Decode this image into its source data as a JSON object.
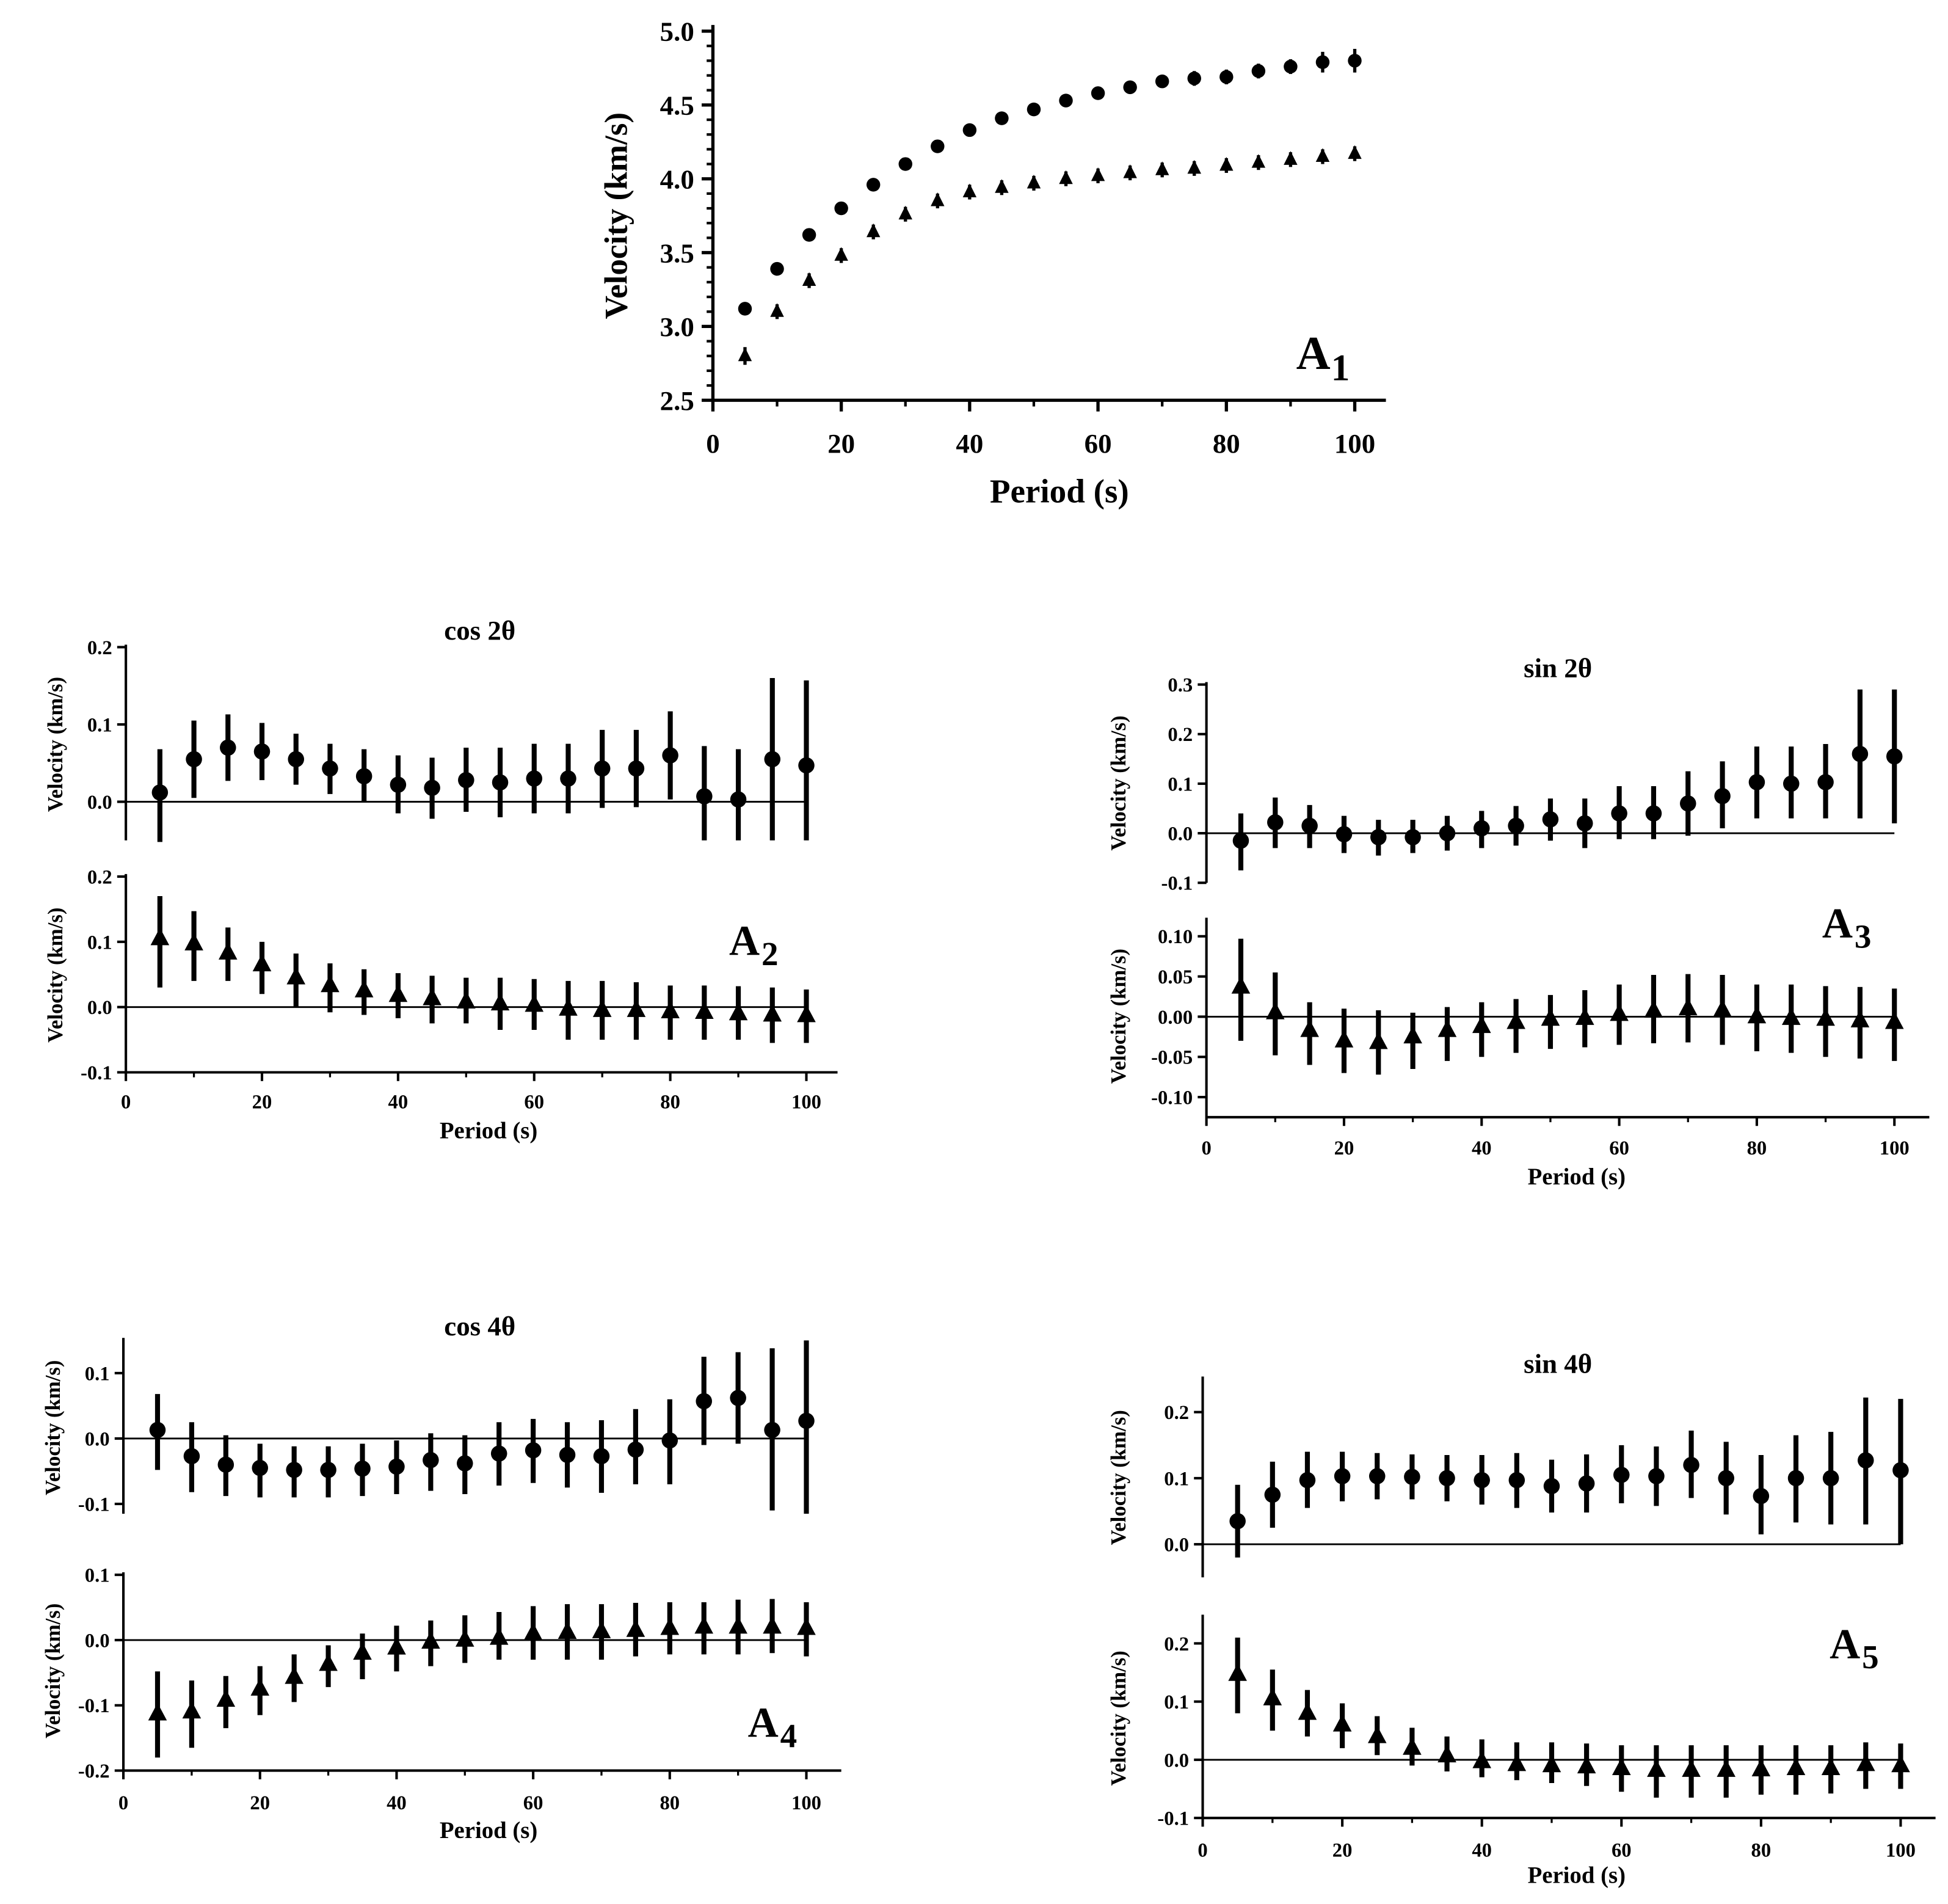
{
  "chart_data": [
    {
      "type": "scatter",
      "panel_label": {
        "letter": "A",
        "sub": "1"
      },
      "xlabel": "Period (s)",
      "ylabel": "Velocity (km/s)",
      "xlim": [
        0,
        100
      ],
      "ylim": [
        2.5,
        5.0
      ],
      "xticks": [
        "0",
        "20",
        "40",
        "60",
        "80",
        "100"
      ],
      "yticks": [
        "2.5",
        "3.0",
        "3.5",
        "4.0",
        "4.5",
        "5.0"
      ],
      "x_minor_step": 10,
      "y_minor_step": 0.1,
      "x": [
        5,
        10,
        15,
        20,
        25,
        30,
        35,
        40,
        45,
        50,
        55,
        60,
        65,
        70,
        75,
        80,
        85,
        90,
        95,
        100
      ],
      "series": [
        {
          "marker": "circle",
          "y": [
            3.12,
            3.39,
            3.62,
            3.8,
            3.96,
            4.1,
            4.22,
            4.33,
            4.41,
            4.47,
            4.53,
            4.58,
            4.62,
            4.66,
            4.68,
            4.69,
            4.73,
            4.76,
            4.79,
            4.8
          ],
          "y_low": [
            3.08,
            3.37,
            3.59,
            3.77,
            3.93,
            4.07,
            4.19,
            4.3,
            4.37,
            4.43,
            4.49,
            4.54,
            4.58,
            4.62,
            4.63,
            4.64,
            4.68,
            4.71,
            4.72,
            4.72
          ],
          "y_high": [
            3.16,
            3.41,
            3.65,
            3.83,
            3.99,
            4.13,
            4.25,
            4.36,
            4.45,
            4.51,
            4.57,
            4.62,
            4.66,
            4.7,
            4.73,
            4.74,
            4.78,
            4.81,
            4.86,
            4.88
          ]
        },
        {
          "marker": "triangle",
          "y": [
            2.8,
            3.1,
            3.31,
            3.48,
            3.64,
            3.76,
            3.85,
            3.91,
            3.94,
            3.97,
            4.0,
            4.02,
            4.04,
            4.06,
            4.07,
            4.09,
            4.11,
            4.13,
            4.15,
            4.17
          ],
          "y_low": [
            2.74,
            3.05,
            3.26,
            3.43,
            3.59,
            3.71,
            3.8,
            3.86,
            3.89,
            3.92,
            3.95,
            3.97,
            3.99,
            4.01,
            4.02,
            4.04,
            4.06,
            4.08,
            4.1,
            4.12
          ],
          "y_high": [
            2.86,
            3.15,
            3.36,
            3.53,
            3.69,
            3.81,
            3.9,
            3.96,
            3.99,
            4.02,
            4.05,
            4.07,
            4.09,
            4.11,
            4.12,
            4.14,
            4.16,
            4.18,
            4.2,
            4.22
          ]
        }
      ]
    },
    {
      "type": "scatter",
      "title": "cos 2θ",
      "ylabel": "Velocity (km/s)",
      "xlim": [
        0,
        100
      ],
      "ylim": [
        -0.05,
        0.2
      ],
      "yticks": [
        "0.2",
        "0.1",
        "0.0"
      ],
      "x": [
        5,
        10,
        15,
        20,
        25,
        30,
        35,
        40,
        45,
        50,
        55,
        60,
        65,
        70,
        75,
        80,
        85,
        90,
        95,
        100
      ],
      "series": [
        {
          "marker": "circle",
          "y": [
            0.012,
            0.055,
            0.07,
            0.065,
            0.055,
            0.043,
            0.033,
            0.022,
            0.018,
            0.028,
            0.025,
            0.03,
            0.03,
            0.043,
            0.043,
            0.06,
            0.007,
            0.003,
            0.055,
            0.047
          ],
          "y_low": [
            -0.052,
            0.005,
            0.027,
            0.028,
            0.022,
            0.01,
            0.0,
            -0.015,
            -0.022,
            -0.013,
            -0.02,
            -0.015,
            -0.015,
            -0.008,
            -0.007,
            0.003,
            -0.05,
            -0.05,
            -0.05,
            -0.05
          ],
          "y_high": [
            0.068,
            0.105,
            0.113,
            0.102,
            0.088,
            0.075,
            0.068,
            0.06,
            0.057,
            0.07,
            0.07,
            0.075,
            0.075,
            0.093,
            0.093,
            0.117,
            0.072,
            0.068,
            0.16,
            0.157
          ]
        }
      ]
    },
    {
      "type": "scatter",
      "panel_label": {
        "letter": "A",
        "sub": "2"
      },
      "xlabel": "Period (s)",
      "ylabel": "Velocity (km/s)",
      "xlim": [
        0,
        100
      ],
      "ylim": [
        -0.1,
        0.2
      ],
      "xticks": [
        "0",
        "20",
        "40",
        "60",
        "80",
        "100"
      ],
      "yticks": [
        "0.2",
        "0.1",
        "0.0",
        "-0.1"
      ],
      "x_minor_step": 10,
      "x": [
        5,
        10,
        15,
        20,
        25,
        30,
        35,
        40,
        45,
        50,
        55,
        60,
        65,
        70,
        75,
        80,
        85,
        90,
        95,
        100
      ],
      "series": [
        {
          "marker": "triangle",
          "y": [
            0.105,
            0.097,
            0.083,
            0.065,
            0.045,
            0.033,
            0.025,
            0.018,
            0.013,
            0.008,
            0.005,
            0.003,
            -0.003,
            -0.005,
            -0.005,
            -0.007,
            -0.008,
            -0.01,
            -0.012,
            -0.013
          ],
          "y_low": [
            0.03,
            0.04,
            0.04,
            0.02,
            0.0,
            -0.008,
            -0.012,
            -0.017,
            -0.025,
            -0.025,
            -0.035,
            -0.035,
            -0.05,
            -0.05,
            -0.05,
            -0.05,
            -0.05,
            -0.05,
            -0.055,
            -0.055
          ],
          "y_high": [
            0.17,
            0.147,
            0.122,
            0.1,
            0.082,
            0.067,
            0.058,
            0.052,
            0.048,
            0.045,
            0.045,
            0.043,
            0.04,
            0.04,
            0.038,
            0.033,
            0.033,
            0.032,
            0.03,
            0.027
          ]
        }
      ]
    },
    {
      "type": "scatter",
      "title": "sin 2θ",
      "ylabel": "Velocity (km/s)",
      "xlim": [
        0,
        100
      ],
      "ylim": [
        -0.1,
        0.3
      ],
      "yticks": [
        "0.3",
        "0.2",
        "0.1",
        "0.0",
        "-0.1"
      ],
      "x": [
        5,
        10,
        15,
        20,
        25,
        30,
        35,
        40,
        45,
        50,
        55,
        60,
        65,
        70,
        75,
        80,
        85,
        90,
        95,
        100
      ],
      "series": [
        {
          "marker": "circle",
          "y": [
            -0.015,
            0.022,
            0.015,
            -0.002,
            -0.008,
            -0.008,
            0.0,
            0.01,
            0.015,
            0.028,
            0.02,
            0.04,
            0.04,
            0.06,
            0.075,
            0.103,
            0.1,
            0.103,
            0.16,
            0.155
          ],
          "y_low": [
            -0.075,
            -0.03,
            -0.03,
            -0.04,
            -0.045,
            -0.04,
            -0.035,
            -0.03,
            -0.025,
            -0.015,
            -0.03,
            -0.012,
            -0.012,
            -0.005,
            0.01,
            0.03,
            0.03,
            0.03,
            0.03,
            0.02
          ],
          "y_high": [
            0.04,
            0.072,
            0.057,
            0.035,
            0.027,
            0.027,
            0.035,
            0.045,
            0.055,
            0.07,
            0.07,
            0.095,
            0.095,
            0.125,
            0.145,
            0.175,
            0.175,
            0.18,
            0.29,
            0.29
          ]
        }
      ]
    },
    {
      "type": "scatter",
      "panel_label": {
        "letter": "A",
        "sub": "3"
      },
      "xlabel": "Period (s)",
      "ylabel": "Velocity (km/s)",
      "xlim": [
        0,
        100
      ],
      "ylim": [
        -0.125,
        0.12
      ],
      "xticks": [
        "0",
        "20",
        "40",
        "60",
        "80",
        "100"
      ],
      "yticks": [
        "0.10",
        "0.05",
        "0.00",
        "-0.05",
        "-0.10"
      ],
      "x_minor_step": 10,
      "x": [
        5,
        10,
        15,
        20,
        25,
        30,
        35,
        40,
        45,
        50,
        55,
        60,
        65,
        70,
        75,
        80,
        85,
        90,
        95,
        100
      ],
      "series": [
        {
          "marker": "triangle",
          "y": [
            0.037,
            0.005,
            -0.017,
            -0.03,
            -0.032,
            -0.025,
            -0.017,
            -0.012,
            -0.007,
            -0.003,
            -0.002,
            0.003,
            0.007,
            0.01,
            0.008,
            0.0,
            -0.002,
            -0.003,
            -0.005,
            -0.007
          ],
          "y_low": [
            -0.03,
            -0.048,
            -0.06,
            -0.07,
            -0.072,
            -0.065,
            -0.055,
            -0.05,
            -0.045,
            -0.04,
            -0.038,
            -0.035,
            -0.033,
            -0.032,
            -0.035,
            -0.043,
            -0.045,
            -0.05,
            -0.052,
            -0.055
          ],
          "y_high": [
            0.097,
            0.055,
            0.018,
            0.01,
            0.008,
            0.005,
            0.012,
            0.018,
            0.022,
            0.027,
            0.033,
            0.04,
            0.052,
            0.053,
            0.052,
            0.04,
            0.04,
            0.038,
            0.037,
            0.035
          ]
        }
      ]
    },
    {
      "type": "scatter",
      "title": "cos 4θ",
      "ylabel": "Velocity (km/s)",
      "xlim": [
        0,
        100
      ],
      "ylim": [
        -0.115,
        0.15
      ],
      "yticks": [
        "0.1",
        "0.0",
        "-0.1"
      ],
      "x": [
        5,
        10,
        15,
        20,
        25,
        30,
        35,
        40,
        45,
        50,
        55,
        60,
        65,
        70,
        75,
        80,
        85,
        90,
        95,
        100
      ],
      "series": [
        {
          "marker": "circle",
          "y": [
            0.013,
            -0.027,
            -0.04,
            -0.045,
            -0.048,
            -0.048,
            -0.046,
            -0.043,
            -0.033,
            -0.038,
            -0.023,
            -0.018,
            -0.025,
            -0.027,
            -0.017,
            -0.003,
            0.057,
            0.062,
            0.013,
            0.027
          ],
          "y_low": [
            -0.048,
            -0.082,
            -0.088,
            -0.09,
            -0.09,
            -0.09,
            -0.088,
            -0.085,
            -0.08,
            -0.085,
            -0.072,
            -0.068,
            -0.075,
            -0.083,
            -0.07,
            -0.07,
            -0.01,
            -0.008,
            -0.11,
            -0.115
          ],
          "y_high": [
            0.068,
            0.025,
            0.005,
            -0.008,
            -0.012,
            -0.012,
            -0.008,
            -0.003,
            0.008,
            0.005,
            0.025,
            0.03,
            0.025,
            0.028,
            0.045,
            0.06,
            0.125,
            0.132,
            0.138,
            0.15
          ]
        }
      ]
    },
    {
      "type": "scatter",
      "panel_label": {
        "letter": "A",
        "sub": "4"
      },
      "xlabel": "Period (s)",
      "ylabel": "Velocity (km/s)",
      "xlim": [
        0,
        100
      ],
      "ylim": [
        -0.2,
        0.1
      ],
      "xticks": [
        "0",
        "20",
        "40",
        "60",
        "80",
        "100"
      ],
      "yticks": [
        "0.1",
        "0.0",
        "-0.1",
        "-0.2"
      ],
      "x_minor_step": 10,
      "x": [
        5,
        10,
        15,
        20,
        25,
        30,
        35,
        40,
        45,
        50,
        55,
        60,
        65,
        70,
        75,
        80,
        85,
        90,
        95,
        100
      ],
      "series": [
        {
          "marker": "triangle",
          "y": [
            -0.113,
            -0.11,
            -0.092,
            -0.075,
            -0.057,
            -0.037,
            -0.02,
            -0.012,
            -0.003,
            0.0,
            0.003,
            0.01,
            0.012,
            0.013,
            0.015,
            0.018,
            0.02,
            0.02,
            0.02,
            0.018
          ],
          "y_low": [
            -0.18,
            -0.165,
            -0.135,
            -0.115,
            -0.095,
            -0.072,
            -0.06,
            -0.048,
            -0.04,
            -0.035,
            -0.03,
            -0.03,
            -0.03,
            -0.03,
            -0.025,
            -0.022,
            -0.022,
            -0.022,
            -0.02,
            -0.025
          ],
          "y_high": [
            -0.048,
            -0.062,
            -0.055,
            -0.04,
            -0.022,
            -0.008,
            0.01,
            0.022,
            0.03,
            0.038,
            0.043,
            0.052,
            0.055,
            0.055,
            0.057,
            0.058,
            0.058,
            0.062,
            0.063,
            0.058
          ]
        }
      ]
    },
    {
      "type": "scatter",
      "title": "sin 4θ",
      "ylabel": "Velocity (km/s)",
      "xlim": [
        0,
        100
      ],
      "ylim": [
        -0.05,
        0.25
      ],
      "yticks": [
        "0.2",
        "0.1",
        "0.0"
      ],
      "x": [
        5,
        10,
        15,
        20,
        25,
        30,
        35,
        40,
        45,
        50,
        55,
        60,
        65,
        70,
        75,
        80,
        85,
        90,
        95,
        100
      ],
      "series": [
        {
          "marker": "circle",
          "y": [
            0.035,
            0.075,
            0.097,
            0.103,
            0.103,
            0.102,
            0.1,
            0.097,
            0.097,
            0.088,
            0.092,
            0.105,
            0.103,
            0.12,
            0.1,
            0.073,
            0.1,
            0.1,
            0.127,
            0.112
          ],
          "y_low": [
            -0.02,
            0.025,
            0.055,
            0.065,
            0.068,
            0.068,
            0.065,
            0.06,
            0.055,
            0.048,
            0.048,
            0.062,
            0.058,
            0.07,
            0.045,
            0.015,
            0.033,
            0.03,
            0.03,
            0.0
          ],
          "y_high": [
            0.09,
            0.125,
            0.14,
            0.14,
            0.138,
            0.136,
            0.135,
            0.135,
            0.138,
            0.128,
            0.136,
            0.15,
            0.148,
            0.172,
            0.155,
            0.135,
            0.165,
            0.17,
            0.222,
            0.22
          ]
        }
      ]
    },
    {
      "type": "scatter",
      "panel_label": {
        "letter": "A",
        "sub": "5"
      },
      "xlabel": "Period (s)",
      "ylabel": "Velocity (km/s)",
      "xlim": [
        0,
        100
      ],
      "ylim": [
        -0.1,
        0.245
      ],
      "xticks": [
        "0",
        "20",
        "40",
        "60",
        "80",
        "100"
      ],
      "yticks": [
        "0.2",
        "0.1",
        "0.0",
        "-0.1"
      ],
      "x_minor_step": 10,
      "x": [
        5,
        10,
        15,
        20,
        25,
        30,
        35,
        40,
        45,
        50,
        55,
        60,
        65,
        70,
        75,
        80,
        85,
        90,
        95,
        100
      ],
      "series": [
        {
          "marker": "triangle",
          "y": [
            0.147,
            0.105,
            0.08,
            0.06,
            0.04,
            0.02,
            0.007,
            -0.003,
            -0.008,
            -0.01,
            -0.012,
            -0.015,
            -0.018,
            -0.018,
            -0.018,
            -0.017,
            -0.015,
            -0.015,
            -0.008,
            -0.01
          ],
          "y_low": [
            0.08,
            0.05,
            0.04,
            0.02,
            0.008,
            -0.01,
            -0.02,
            -0.03,
            -0.035,
            -0.04,
            -0.045,
            -0.055,
            -0.065,
            -0.065,
            -0.065,
            -0.06,
            -0.06,
            -0.058,
            -0.05,
            -0.05
          ],
          "y_high": [
            0.21,
            0.155,
            0.12,
            0.097,
            0.075,
            0.055,
            0.04,
            0.035,
            0.03,
            0.03,
            0.028,
            0.025,
            0.025,
            0.025,
            0.025,
            0.025,
            0.025,
            0.025,
            0.03,
            0.028
          ]
        }
      ]
    }
  ]
}
